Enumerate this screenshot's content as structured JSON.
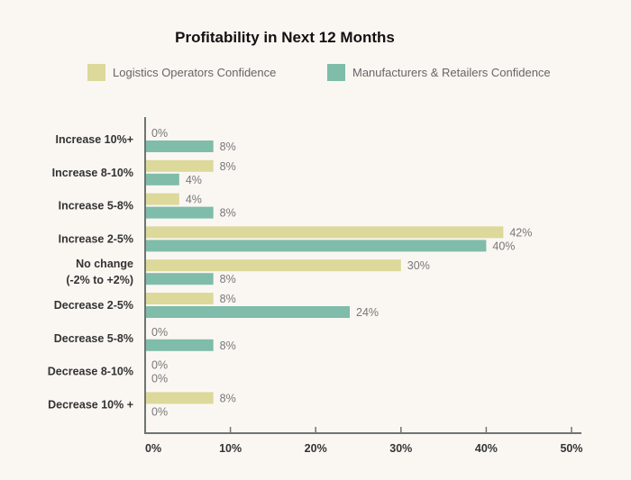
{
  "chart_data": {
    "type": "bar",
    "orientation": "horizontal",
    "title": "Profitability in Next 12 Months",
    "categories": [
      "Increase 10%+",
      "Increase 8-10%",
      "Increase 5-8%",
      "Increase 2-5%",
      "No change\n(-2% to +2%)",
      "Decrease 2-5%",
      "Decrease 5-8%",
      "Decrease 8-10%",
      "Decrease 10% +"
    ],
    "series": [
      {
        "name": "Logistics Operators Confidence",
        "color": "#dcd99a",
        "values": [
          0,
          8,
          4,
          42,
          30,
          8,
          0,
          0,
          8
        ]
      },
      {
        "name": "Manufacturers & Retailers Confidence",
        "color": "#7fbcaa",
        "values": [
          8,
          4,
          8,
          40,
          8,
          24,
          8,
          0,
          0
        ]
      }
    ],
    "xlim": [
      0,
      50
    ],
    "xticks": [
      0,
      10,
      20,
      30,
      40,
      50
    ],
    "tick_suffix": "%",
    "legend": "top",
    "grid": false
  }
}
